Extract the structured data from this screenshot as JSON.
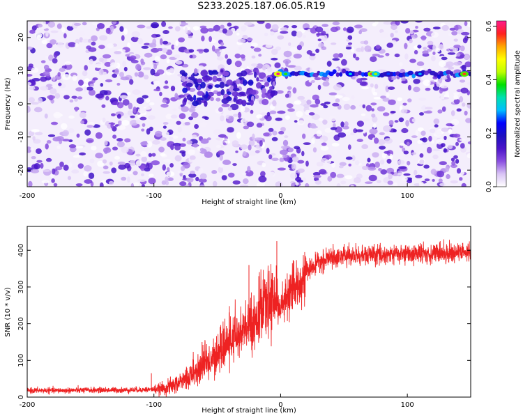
{
  "title": "S233.2025.187.06.05.R19",
  "colorbar": {
    "label": "Normalized spectral amplitude",
    "ticks": [
      0.0,
      0.2,
      0.4,
      0.6
    ],
    "tick_labels": [
      "0.0",
      "0.2",
      "0.4",
      "0.6"
    ],
    "range": [
      0,
      0.62
    ],
    "colormap": [
      "#ffffff",
      "#d9c4f5",
      "#8a4fe0",
      "#4b14c9",
      "#1c10c0",
      "#0000ff",
      "#00bfff",
      "#00e0b0",
      "#00e000",
      "#bfff00",
      "#ffff00",
      "#ffa500",
      "#ff2020",
      "#ff1a8c"
    ]
  },
  "chart_data": [
    {
      "type": "heatmap",
      "title": "S233.2025.187.06.05.R19",
      "xlabel": "Height of straight line (km)",
      "ylabel": "Frequency (Hz)",
      "xlim": [
        -200,
        150
      ],
      "ylim": [
        -25,
        25
      ],
      "x_ticks": [
        -200,
        -100,
        0,
        100
      ],
      "y_ticks": [
        -20,
        -10,
        0,
        10,
        20
      ],
      "colorbar_label": "Normalized spectral amplitude",
      "color_range": [
        0,
        0.62
      ],
      "features": [
        {
          "desc": "persistent carrier line",
          "x_range": [
            -5,
            150
          ],
          "frequency": 9,
          "peak_amplitude": 0.45
        },
        {
          "desc": "diffuse signal band",
          "x_range": [
            -80,
            -5
          ],
          "frequency_range": [
            0,
            10
          ],
          "amplitude": 0.15
        }
      ]
    },
    {
      "type": "line",
      "xlabel": "Height of straight line (km)",
      "ylabel": "SNR (10 * v/v)",
      "xlim": [
        -200,
        150
      ],
      "ylim": [
        0,
        465
      ],
      "x_ticks": [
        -200,
        -100,
        0,
        100
      ],
      "y_ticks": [
        0,
        100,
        200,
        300,
        400
      ],
      "color": "#ee2222",
      "series": [
        {
          "x": [
            -200,
            -175,
            -150,
            -125,
            -110,
            -100,
            -90,
            -80,
            -70,
            -60,
            -50,
            -40,
            -30,
            -20,
            -10,
            -5,
            0,
            10,
            20,
            30,
            40,
            50,
            60,
            80,
            100,
            120,
            150
          ],
          "y": [
            18,
            18,
            19,
            19,
            20,
            21,
            25,
            38,
            60,
            88,
            115,
            150,
            175,
            210,
            250,
            270,
            240,
            290,
            340,
            365,
            380,
            385,
            385,
            388,
            390,
            392,
            395
          ]
        }
      ],
      "annotations": [
        {
          "x": -102,
          "y": 65
        },
        {
          "x": -3,
          "y": 425
        },
        {
          "x": -25,
          "y": 360
        },
        {
          "x": -62,
          "y": 150
        }
      ]
    }
  ]
}
